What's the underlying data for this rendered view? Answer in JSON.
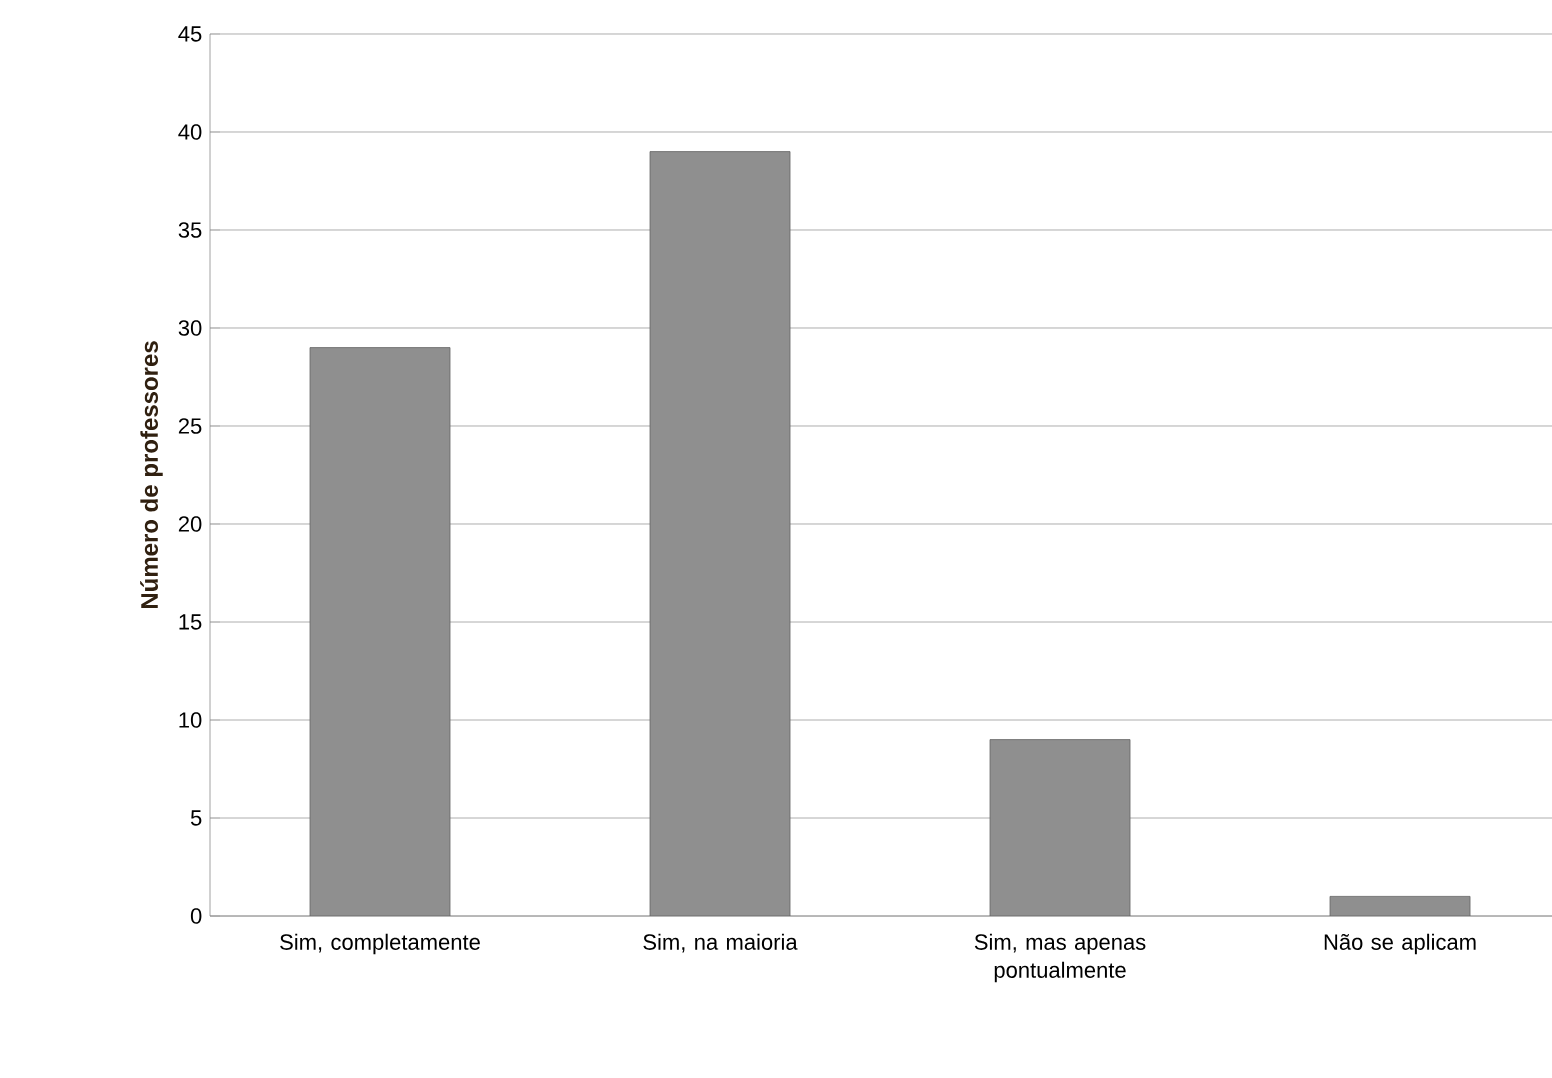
{
  "chart_data": {
    "type": "bar",
    "ylabel": "Número de professores",
    "categories": [
      "Sim, completamente",
      "Sim, na maioria",
      "Sim, mas apenas pontualmente",
      "Não se aplicam"
    ],
    "values": [
      29,
      39,
      9,
      1
    ],
    "color": "#8f8f8f",
    "ylim": [
      0,
      45
    ],
    "yticks": [
      0,
      5,
      10,
      15,
      20,
      25,
      30,
      35,
      40,
      45
    ],
    "grid": "y"
  }
}
